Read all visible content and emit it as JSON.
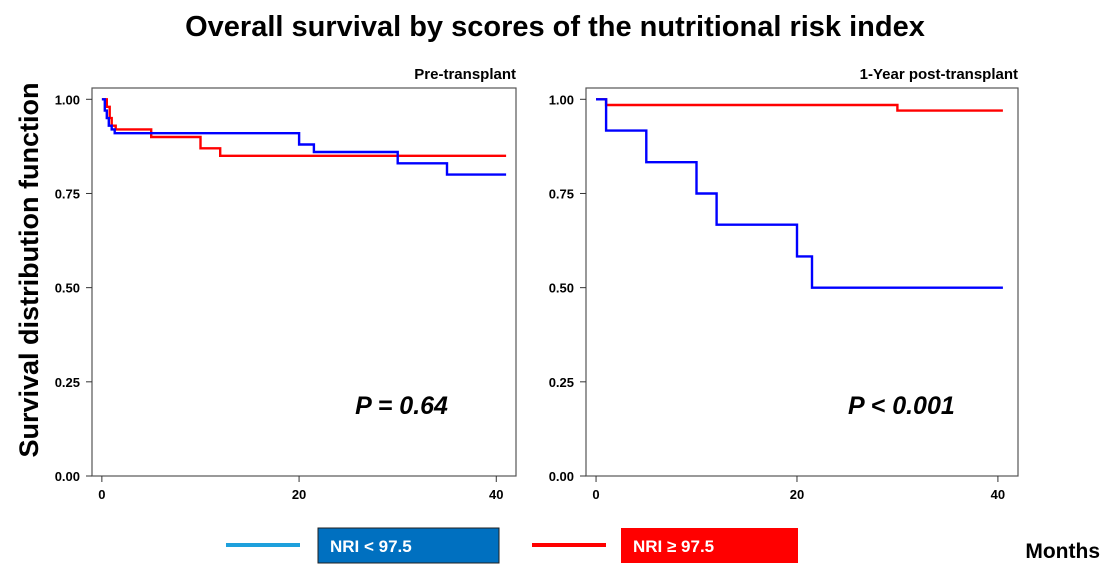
{
  "title": "Overall survival by scores of the nutritional risk index",
  "ylabel": "Survival distribution function",
  "xlabel": "Months",
  "colors": {
    "nri_low": "#0000ff",
    "nri_high": "#ff0000",
    "legend_low_line": "#1ea0dc",
    "legend_low_box": "#0070c0",
    "legend_high_box": "#ff0000"
  },
  "legend": [
    {
      "label": "NRI < 97.5",
      "series": "nri_low"
    },
    {
      "label": "NRI ≥ 97.5",
      "series": "nri_high"
    }
  ],
  "chart_data": [
    {
      "type": "line",
      "step": true,
      "panel_title": "Pre-transplant",
      "p_value": "P = 0.64",
      "xlim": [
        -1,
        42
      ],
      "ylim": [
        0,
        1.03
      ],
      "xticks": [
        0,
        20,
        40
      ],
      "xtick_labels": [
        "0",
        "20",
        "40"
      ],
      "yticks": [
        0,
        0.25,
        0.5,
        0.75,
        1.0
      ],
      "ytick_labels": [
        "0.00",
        "0.25",
        "0.50",
        "0.75",
        "1.00"
      ],
      "series": [
        {
          "name": "NRI < 97.5",
          "color": "#0000ff",
          "x": [
            0,
            0.3,
            0.5,
            0.7,
            1.0,
            1.3,
            20.0,
            21.5,
            30.0,
            35.0,
            41.0
          ],
          "y": [
            1.0,
            0.97,
            0.95,
            0.93,
            0.92,
            0.91,
            0.88,
            0.86,
            0.83,
            0.8,
            0.8
          ]
        },
        {
          "name": "NRI ≥ 97.5",
          "color": "#ff0000",
          "x": [
            0,
            0.5,
            0.8,
            1.0,
            1.4,
            5.0,
            10.0,
            12.0,
            41.0
          ],
          "y": [
            1.0,
            0.98,
            0.95,
            0.93,
            0.92,
            0.9,
            0.87,
            0.85,
            0.85
          ]
        }
      ]
    },
    {
      "type": "line",
      "step": true,
      "panel_title": "1-Year post-transplant",
      "p_value": "P < 0.001",
      "xlim": [
        -1,
        42
      ],
      "ylim": [
        0,
        1.03
      ],
      "xticks": [
        0,
        20,
        40
      ],
      "xtick_labels": [
        "0",
        "20",
        "40"
      ],
      "yticks": [
        0,
        0.25,
        0.5,
        0.75,
        1.0
      ],
      "ytick_labels": [
        "0.00",
        "0.25",
        "0.50",
        "0.75",
        "1.00"
      ],
      "series": [
        {
          "name": "NRI < 97.5",
          "color": "#0000ff",
          "x": [
            0,
            1.0,
            5.0,
            10.0,
            12.0,
            20.0,
            21.5,
            40.5
          ],
          "y": [
            1.0,
            0.917,
            0.833,
            0.75,
            0.667,
            0.583,
            0.5,
            0.5
          ]
        },
        {
          "name": "NRI ≥ 97.5",
          "color": "#ff0000",
          "x": [
            0,
            1.0,
            30.0,
            40.5
          ],
          "y": [
            1.0,
            0.985,
            0.97,
            0.97
          ]
        }
      ]
    }
  ]
}
